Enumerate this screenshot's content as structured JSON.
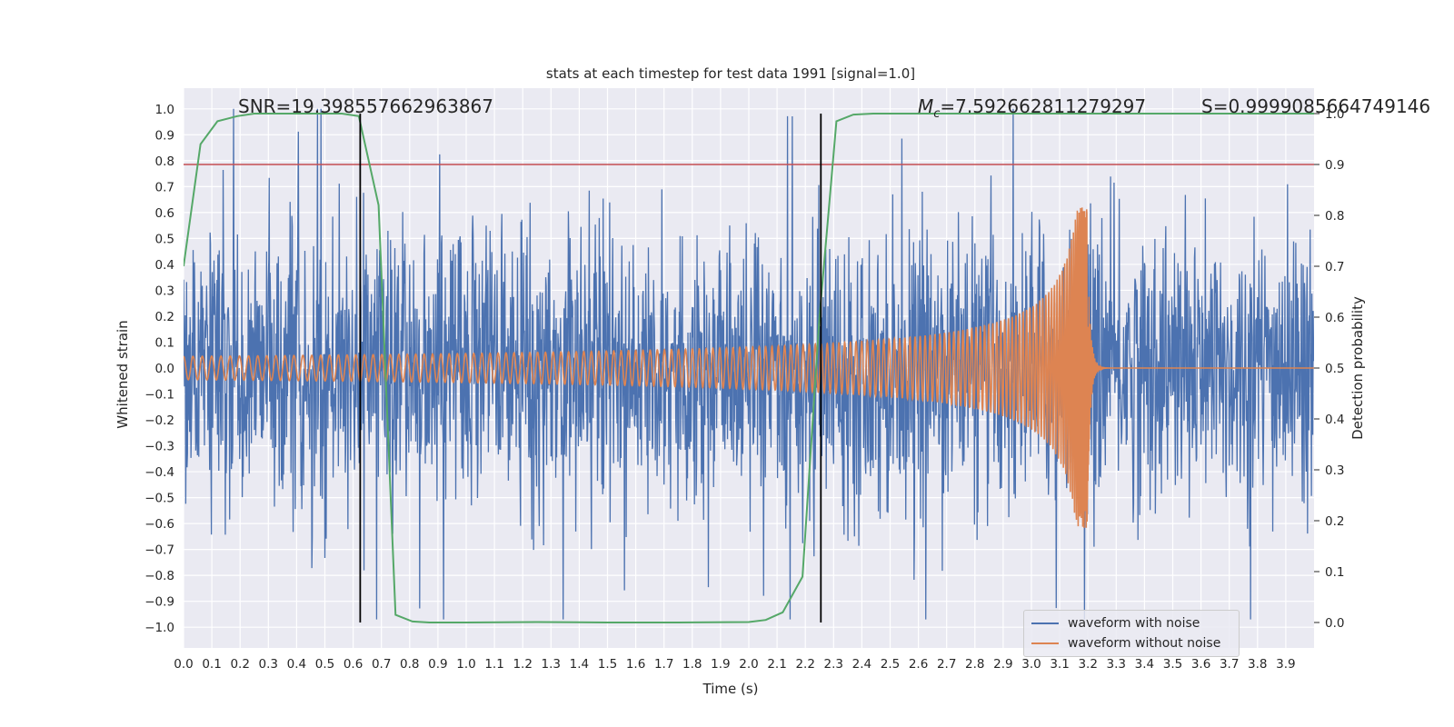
{
  "chart_data": {
    "type": "line",
    "title": "stats at each timestep for test data 1991 [signal=1.0]",
    "xlabel": "Time (s)",
    "ylabel": "Whitened strain",
    "y2label": "Detection probability",
    "xlim": [
      0.0,
      4.0
    ],
    "ylim": [
      -1.08,
      1.08
    ],
    "y2lim": [
      -0.05,
      1.05
    ],
    "x_ticks": [
      "0.0",
      "0.1",
      "0.2",
      "0.3",
      "0.4",
      "0.5",
      "0.6",
      "0.7",
      "0.8",
      "0.9",
      "1.0",
      "1.1",
      "1.2",
      "1.3",
      "1.4",
      "1.5",
      "1.6",
      "1.7",
      "1.8",
      "1.9",
      "2.0",
      "2.1",
      "2.2",
      "2.3",
      "2.4",
      "2.5",
      "2.6",
      "2.7",
      "2.8",
      "2.9",
      "3.0",
      "3.1",
      "3.2",
      "3.3",
      "3.4",
      "3.5",
      "3.6",
      "3.7",
      "3.8",
      "3.9"
    ],
    "y_ticks": [
      "1.0",
      "0.9",
      "0.8",
      "0.7",
      "0.6",
      "0.5",
      "0.4",
      "0.3",
      "0.2",
      "0.1",
      "0.0",
      "−0.1",
      "−0.2",
      "−0.3",
      "−0.4",
      "−0.5",
      "−0.6",
      "−0.7",
      "−0.8",
      "−0.9",
      "−1.0"
    ],
    "y2_ticks": [
      "0.0",
      "0.1",
      "0.2",
      "0.3",
      "0.4",
      "0.5",
      "0.6",
      "0.7",
      "0.8",
      "0.9",
      "1.0"
    ],
    "annotations": {
      "snr": "SNR=19.398557662963867",
      "mc_symbol": "M",
      "mc_sub": "c",
      "mc_value": "=7.592662811279297",
      "s": "S=0.9999085664749146"
    },
    "threshold_line_y2": 0.9,
    "vertical_lines_x": [
      0.625,
      2.255
    ],
    "series": [
      {
        "name": "waveform with noise",
        "axis": "y",
        "color": "#4c72b0",
        "kind": "noise",
        "noise_std": 0.26,
        "x_range": [
          0.0,
          4.0
        ]
      },
      {
        "name": "waveform without noise",
        "axis": "y",
        "color": "#dd8452",
        "kind": "chirp",
        "x_range": [
          0.0,
          4.0
        ],
        "merger_time": 3.2,
        "amplitude_start": 0.045,
        "amplitude_peak": 0.62,
        "freq_start_hz": 30
      },
      {
        "name": "detection probability",
        "axis": "y2",
        "color": "#55a868",
        "x": [
          0.0,
          0.06,
          0.12,
          0.19,
          0.25,
          0.31,
          0.37,
          0.43,
          0.5,
          0.56,
          0.62,
          0.69,
          0.75,
          0.81,
          0.87,
          0.94,
          1.0,
          1.25,
          1.5,
          1.75,
          2.0,
          2.06,
          2.12,
          2.19,
          2.25,
          2.31,
          2.37,
          2.44,
          2.5,
          3.0,
          3.5,
          4.0
        ],
        "y": [
          0.7,
          0.94,
          0.985,
          0.995,
          1.0,
          1.0,
          1.0,
          1.0,
          1.0,
          1.0,
          0.995,
          0.82,
          0.015,
          0.002,
          0.0,
          0.0,
          0.0,
          0.001,
          0.0,
          0.0,
          0.001,
          0.005,
          0.02,
          0.09,
          0.6,
          0.985,
          0.998,
          1.0,
          1.0,
          1.0,
          1.0,
          1.0
        ]
      }
    ]
  }
}
